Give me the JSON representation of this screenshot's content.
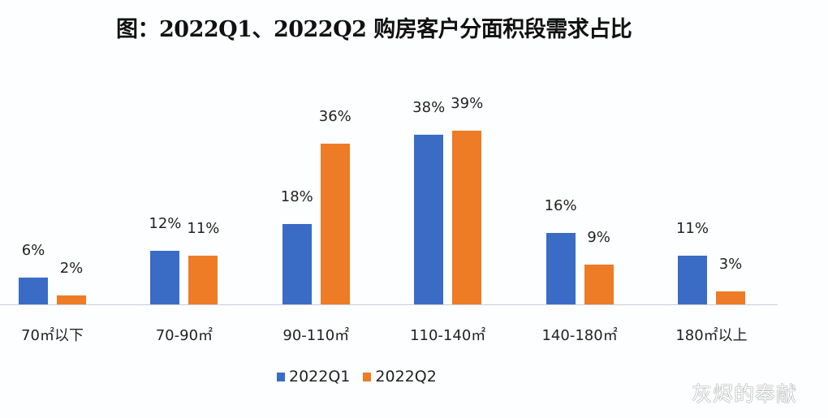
{
  "title": "图：2022Q1、2022Q2 购房客户分面积段需求占比",
  "colors": {
    "q1": "#3a6cc6",
    "q2": "#ee7b26"
  },
  "legend": [
    {
      "label": "2022Q1",
      "color": "#3a6cc6"
    },
    {
      "label": "2022Q2",
      "color": "#ee7b26"
    }
  ],
  "watermark": "灰烬的奉献",
  "chart_data": {
    "type": "bar",
    "title": "图：2022Q1、2022Q2 购房客户分面积段需求占比",
    "xlabel": "",
    "ylabel": "",
    "categories": [
      "70㎡以下",
      "70-90㎡",
      "90-110㎡",
      "110-140㎡",
      "140-180㎡",
      "180㎡以上"
    ],
    "series": [
      {
        "name": "2022Q1",
        "values": [
          6,
          12,
          18,
          38,
          16,
          11
        ],
        "labels": [
          "6%",
          "12%",
          "18%",
          "38%",
          "16%",
          "11%"
        ]
      },
      {
        "name": "2022Q2",
        "values": [
          2,
          11,
          36,
          39,
          9,
          3
        ],
        "labels": [
          "2%",
          "11%",
          "36%",
          "39%",
          "9%",
          "3%"
        ]
      }
    ],
    "unit": "%",
    "grid": false,
    "legend_position": "bottom",
    "data_labels": true
  }
}
